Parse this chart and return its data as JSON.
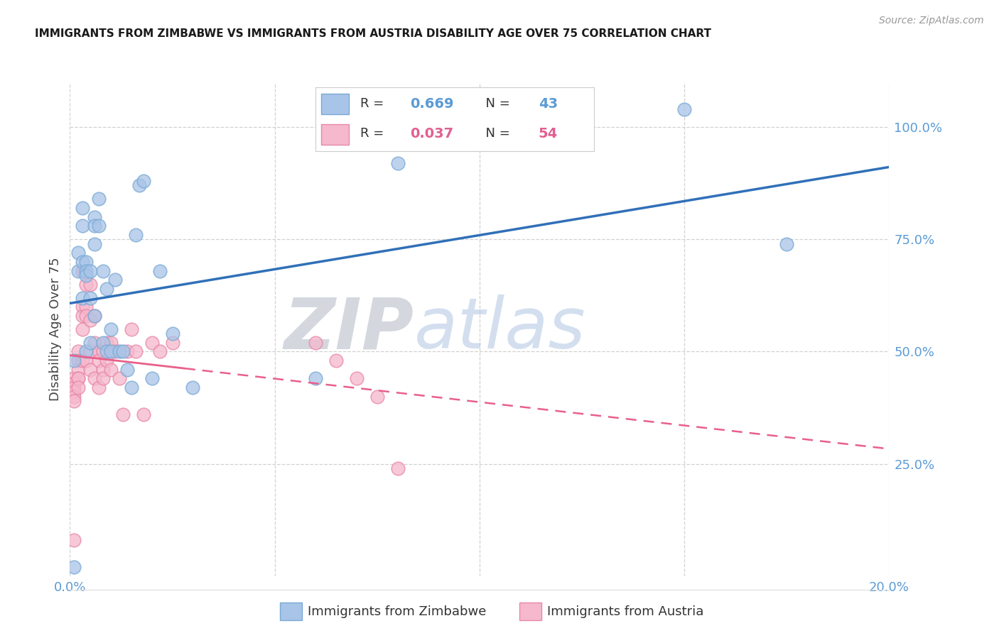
{
  "title": "IMMIGRANTS FROM ZIMBABWE VS IMMIGRANTS FROM AUSTRIA DISABILITY AGE OVER 75 CORRELATION CHART",
  "source": "Source: ZipAtlas.com",
  "ylabel": "Disability Age Over 75",
  "xlim": [
    0.0,
    0.2
  ],
  "ylim": [
    0.0,
    1.1
  ],
  "zimbabwe_color": "#a8c4e8",
  "zimbabwe_edge": "#7aaad4",
  "austria_color": "#f5b8cc",
  "austria_edge": "#e888a8",
  "trend_blue": "#3070b8",
  "trend_pink": "#e8608a",
  "zimbabwe_R": 0.669,
  "zimbabwe_N": 43,
  "austria_R": 0.037,
  "austria_N": 54,
  "tick_color": "#5b9bd5",
  "watermark_zip_color": "#c0c8d8",
  "watermark_atlas_color": "#b8cce8",
  "zimbabwe_x": [
    0.001,
    0.001,
    0.002,
    0.002,
    0.003,
    0.003,
    0.003,
    0.003,
    0.004,
    0.004,
    0.004,
    0.004,
    0.005,
    0.005,
    0.005,
    0.006,
    0.006,
    0.006,
    0.006,
    0.007,
    0.007,
    0.008,
    0.008,
    0.009,
    0.009,
    0.01,
    0.01,
    0.011,
    0.012,
    0.013,
    0.014,
    0.015,
    0.016,
    0.017,
    0.018,
    0.02,
    0.022,
    0.025,
    0.03,
    0.06,
    0.08,
    0.15,
    0.175
  ],
  "zimbabwe_y": [
    0.02,
    0.48,
    0.68,
    0.72,
    0.82,
    0.78,
    0.7,
    0.62,
    0.7,
    0.68,
    0.67,
    0.5,
    0.68,
    0.62,
    0.52,
    0.8,
    0.78,
    0.74,
    0.58,
    0.84,
    0.78,
    0.68,
    0.52,
    0.64,
    0.5,
    0.55,
    0.5,
    0.66,
    0.5,
    0.5,
    0.46,
    0.42,
    0.76,
    0.87,
    0.88,
    0.44,
    0.68,
    0.54,
    0.42,
    0.44,
    0.92,
    1.04,
    0.74
  ],
  "austria_x": [
    0.001,
    0.001,
    0.001,
    0.001,
    0.001,
    0.001,
    0.001,
    0.002,
    0.002,
    0.002,
    0.002,
    0.002,
    0.002,
    0.003,
    0.003,
    0.003,
    0.003,
    0.003,
    0.004,
    0.004,
    0.004,
    0.004,
    0.005,
    0.005,
    0.005,
    0.005,
    0.006,
    0.006,
    0.006,
    0.007,
    0.007,
    0.007,
    0.008,
    0.008,
    0.008,
    0.009,
    0.009,
    0.01,
    0.01,
    0.011,
    0.012,
    0.013,
    0.014,
    0.015,
    0.016,
    0.018,
    0.02,
    0.022,
    0.025,
    0.06,
    0.065,
    0.07,
    0.075,
    0.08
  ],
  "austria_y": [
    0.44,
    0.43,
    0.42,
    0.41,
    0.4,
    0.39,
    0.08,
    0.5,
    0.48,
    0.46,
    0.44,
    0.44,
    0.42,
    0.68,
    0.6,
    0.58,
    0.55,
    0.48,
    0.65,
    0.6,
    0.58,
    0.48,
    0.65,
    0.57,
    0.5,
    0.46,
    0.58,
    0.52,
    0.44,
    0.5,
    0.48,
    0.42,
    0.5,
    0.46,
    0.44,
    0.52,
    0.48,
    0.52,
    0.46,
    0.5,
    0.44,
    0.36,
    0.5,
    0.55,
    0.5,
    0.36,
    0.52,
    0.5,
    0.52,
    0.52,
    0.48,
    0.44,
    0.4,
    0.24
  ]
}
